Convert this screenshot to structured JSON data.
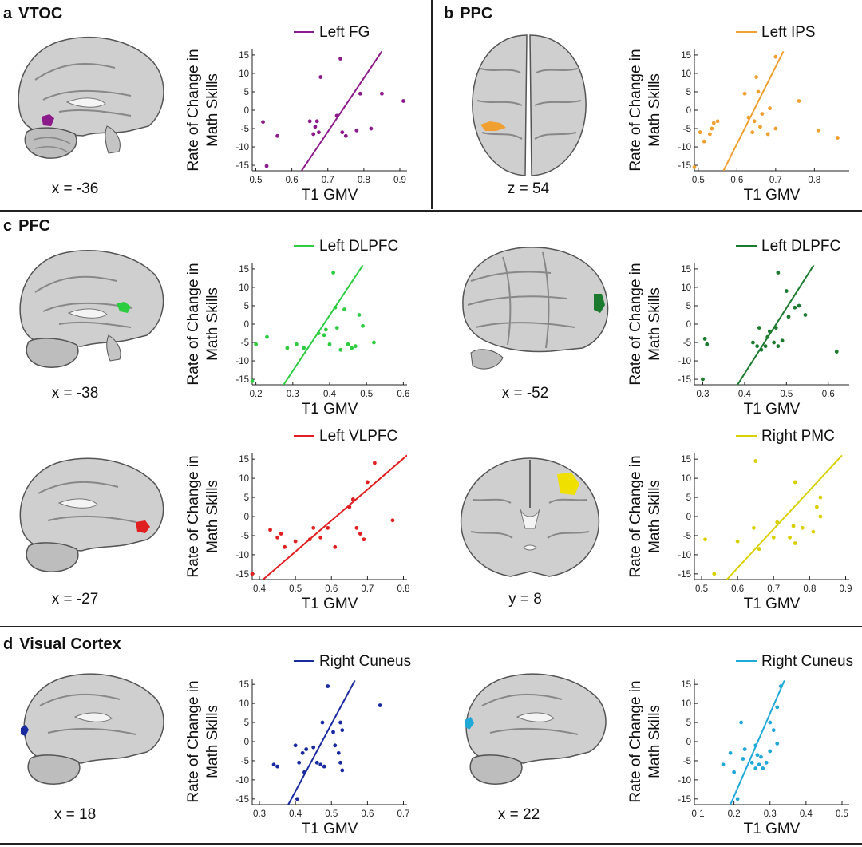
{
  "sections": {
    "a": {
      "letter": "a",
      "title": "VTOC"
    },
    "b": {
      "letter": "b",
      "title": "PPC"
    },
    "c": {
      "letter": "c",
      "title": "PFC"
    },
    "d": {
      "letter": "d",
      "title": "Visual Cortex"
    }
  },
  "panels": [
    {
      "id": "a1",
      "coord_label": "x = -36",
      "roi_color": "#8B1A8B"
    },
    {
      "id": "b1",
      "coord_label": "z = 54",
      "roi_color": "#F0A030"
    },
    {
      "id": "c1",
      "coord_label": "x = -38",
      "roi_color": "#2ECC40"
    },
    {
      "id": "c2",
      "coord_label": "x = -52",
      "roi_color": "#1B7A2E"
    },
    {
      "id": "c3",
      "coord_label": "x = -27",
      "roi_color": "#E02020"
    },
    {
      "id": "c4",
      "coord_label": "y = 8",
      "roi_color": "#F0E000"
    },
    {
      "id": "d1",
      "coord_label": "x = 18",
      "roi_color": "#1A2AA0"
    },
    {
      "id": "d2",
      "coord_label": "x = 22",
      "roi_color": "#20A8D8"
    }
  ],
  "chart_data": [
    {
      "type": "scatter",
      "panel": "a",
      "series_name": "Left FG",
      "color": "#8B1A8B",
      "xlabel": "T1 GMV",
      "ylabel": "Rate of Change in Math Skills",
      "xlim": [
        0.49,
        0.92
      ],
      "ylim": [
        -16.5,
        16.5
      ],
      "xticks": [
        0.5,
        0.6,
        0.7,
        0.8,
        0.9
      ],
      "yticks": [
        -15,
        -10,
        -5,
        0,
        5,
        10,
        15
      ],
      "fit_line": [
        [
          0.627,
          -16.5
        ],
        [
          0.85,
          16
        ]
      ],
      "points": [
        [
          0.52,
          -3.2
        ],
        [
          0.53,
          -15.2
        ],
        [
          0.56,
          -7
        ],
        [
          0.65,
          -3
        ],
        [
          0.66,
          -6.5
        ],
        [
          0.665,
          -4.5
        ],
        [
          0.67,
          -3
        ],
        [
          0.675,
          -6
        ],
        [
          0.68,
          9
        ],
        [
          0.725,
          -1.5
        ],
        [
          0.735,
          14
        ],
        [
          0.74,
          -6
        ],
        [
          0.75,
          -7
        ],
        [
          0.78,
          -5.5
        ],
        [
          0.79,
          4.5
        ],
        [
          0.82,
          -5
        ],
        [
          0.85,
          4.5
        ],
        [
          0.91,
          2.5
        ]
      ]
    },
    {
      "type": "scatter",
      "panel": "b",
      "series_name": "Left IPS",
      "color": "#F0A030",
      "xlabel": "T1 GMV",
      "ylabel": "Rate of Change in Math Skills",
      "xlim": [
        0.49,
        0.89
      ],
      "ylim": [
        -16.5,
        16.5
      ],
      "xticks": [
        0.5,
        0.6,
        0.7,
        0.8
      ],
      "yticks": [
        -15,
        -10,
        -5,
        0,
        5,
        10,
        15
      ],
      "fit_line": [
        [
          0.565,
          -16.5
        ],
        [
          0.72,
          16
        ]
      ],
      "points": [
        [
          0.49,
          -15.5
        ],
        [
          0.505,
          -6
        ],
        [
          0.515,
          -8.5
        ],
        [
          0.53,
          -6.5
        ],
        [
          0.535,
          -5
        ],
        [
          0.54,
          -3.5
        ],
        [
          0.55,
          -3
        ],
        [
          0.62,
          4.5
        ],
        [
          0.63,
          -2
        ],
        [
          0.64,
          -6
        ],
        [
          0.645,
          -3
        ],
        [
          0.65,
          9
        ],
        [
          0.655,
          5
        ],
        [
          0.66,
          -4.5
        ],
        [
          0.665,
          -1
        ],
        [
          0.68,
          -6.5
        ],
        [
          0.685,
          0.5
        ],
        [
          0.7,
          14.5
        ],
        [
          0.7,
          -5
        ],
        [
          0.76,
          2.5
        ],
        [
          0.81,
          -5.5
        ],
        [
          0.86,
          -7.5
        ]
      ]
    },
    {
      "type": "scatter",
      "panel": "c1",
      "series_name": "Left DLPFC",
      "color": "#2ECC40",
      "xlabel": "T1 GMV",
      "ylabel": "Rate of Change in Math Skills",
      "xlim": [
        0.19,
        0.61
      ],
      "ylim": [
        -16.5,
        16.5
      ],
      "xticks": [
        0.2,
        0.3,
        0.4,
        0.5,
        0.6
      ],
      "yticks": [
        -15,
        -10,
        -5,
        0,
        5,
        10,
        15
      ],
      "fit_line": [
        [
          0.275,
          -16.5
        ],
        [
          0.49,
          16
        ]
      ],
      "points": [
        [
          0.19,
          -15.5
        ],
        [
          0.2,
          -5.5
        ],
        [
          0.23,
          -3.5
        ],
        [
          0.285,
          -6.5
        ],
        [
          0.31,
          -5.5
        ],
        [
          0.33,
          -6.5
        ],
        [
          0.37,
          -2.5
        ],
        [
          0.385,
          -3
        ],
        [
          0.39,
          -1.5
        ],
        [
          0.4,
          -5.5
        ],
        [
          0.41,
          14
        ],
        [
          0.415,
          4.5
        ],
        [
          0.42,
          -1
        ],
        [
          0.43,
          -7
        ],
        [
          0.44,
          4
        ],
        [
          0.45,
          -5.5
        ],
        [
          0.46,
          -6.5
        ],
        [
          0.47,
          -6
        ],
        [
          0.48,
          2.5
        ],
        [
          0.49,
          -0.5
        ],
        [
          0.52,
          -5
        ]
      ]
    },
    {
      "type": "scatter",
      "panel": "c2",
      "series_name": "Left DLPFC",
      "color": "#1B7A2E",
      "xlabel": "T1 GMV",
      "ylabel": "Rate of Change in Math Skills",
      "xlim": [
        0.28,
        0.65
      ],
      "ylim": [
        -16.5,
        16.5
      ],
      "xticks": [
        0.3,
        0.4,
        0.5,
        0.6
      ],
      "yticks": [
        -15,
        -10,
        -5,
        0,
        5,
        10,
        15
      ],
      "fit_line": [
        [
          0.383,
          -16.5
        ],
        [
          0.565,
          16
        ]
      ],
      "points": [
        [
          0.3,
          -15
        ],
        [
          0.305,
          -4
        ],
        [
          0.31,
          -5.5
        ],
        [
          0.42,
          -5
        ],
        [
          0.43,
          -6
        ],
        [
          0.435,
          -1
        ],
        [
          0.44,
          -7
        ],
        [
          0.45,
          -6
        ],
        [
          0.455,
          -3.5
        ],
        [
          0.46,
          -2
        ],
        [
          0.47,
          -5
        ],
        [
          0.475,
          -1
        ],
        [
          0.48,
          14
        ],
        [
          0.48,
          -6
        ],
        [
          0.49,
          -4.5
        ],
        [
          0.5,
          9
        ],
        [
          0.505,
          2
        ],
        [
          0.52,
          4.5
        ],
        [
          0.53,
          5
        ],
        [
          0.545,
          2.5
        ],
        [
          0.62,
          -7.5
        ]
      ]
    },
    {
      "type": "scatter",
      "panel": "c3",
      "series_name": "Left VLPFC",
      "color": "#E02020",
      "xlabel": "T1 GMV",
      "ylabel": "Rate of Change in Math Skills",
      "xlim": [
        0.38,
        0.81
      ],
      "ylim": [
        -16.5,
        16.5
      ],
      "xticks": [
        0.4,
        0.5,
        0.6,
        0.7,
        0.8
      ],
      "yticks": [
        -15,
        -10,
        -5,
        0,
        5,
        10,
        15
      ],
      "fit_line": [
        [
          0.41,
          -16.5
        ],
        [
          0.81,
          16
        ]
      ],
      "points": [
        [
          0.38,
          -15
        ],
        [
          0.43,
          -3.5
        ],
        [
          0.45,
          -5.5
        ],
        [
          0.46,
          -4.5
        ],
        [
          0.47,
          -8
        ],
        [
          0.5,
          -6.5
        ],
        [
          0.54,
          -6
        ],
        [
          0.55,
          -3
        ],
        [
          0.57,
          -5.5
        ],
        [
          0.59,
          -3
        ],
        [
          0.61,
          -8
        ],
        [
          0.65,
          2.5
        ],
        [
          0.66,
          4.5
        ],
        [
          0.67,
          -3
        ],
        [
          0.68,
          -4.5
        ],
        [
          0.69,
          -6
        ],
        [
          0.7,
          9
        ],
        [
          0.72,
          14
        ],
        [
          0.77,
          -1
        ]
      ]
    },
    {
      "type": "scatter",
      "panel": "c4",
      "series_name": "Right PMC",
      "color": "#D8D000",
      "xlabel": "T1 GMV",
      "ylabel": "Rate of Change in Math Skills",
      "xlim": [
        0.48,
        0.91
      ],
      "ylim": [
        -16.5,
        16.5
      ],
      "xticks": [
        0.5,
        0.6,
        0.7,
        0.8,
        0.9
      ],
      "yticks": [
        -15,
        -10,
        -5,
        0,
        5,
        10,
        15
      ],
      "fit_line": [
        [
          0.57,
          -16.5
        ],
        [
          0.89,
          16
        ]
      ],
      "points": [
        [
          0.51,
          -6
        ],
        [
          0.535,
          -15
        ],
        [
          0.6,
          -6.5
        ],
        [
          0.645,
          -3
        ],
        [
          0.65,
          14.5
        ],
        [
          0.66,
          -8.5
        ],
        [
          0.7,
          -5.5
        ],
        [
          0.71,
          -1.5
        ],
        [
          0.745,
          -5.5
        ],
        [
          0.755,
          -2.5
        ],
        [
          0.76,
          -7
        ],
        [
          0.76,
          9
        ],
        [
          0.78,
          -3
        ],
        [
          0.81,
          -4
        ],
        [
          0.82,
          2.5
        ],
        [
          0.83,
          5
        ],
        [
          0.83,
          0
        ]
      ]
    },
    {
      "type": "scatter",
      "panel": "d1",
      "series_name": "Right Cuneus",
      "color": "#1A2AA0",
      "xlabel": "T1 GMV",
      "ylabel": "Rate of Change in Math Skills",
      "xlim": [
        0.28,
        0.71
      ],
      "ylim": [
        -16.5,
        16.5
      ],
      "xticks": [
        0.3,
        0.4,
        0.5,
        0.6,
        0.7
      ],
      "yticks": [
        -15,
        -10,
        -5,
        0,
        5,
        10,
        15
      ],
      "fit_line": [
        [
          0.38,
          -16.5
        ],
        [
          0.565,
          16
        ]
      ],
      "points": [
        [
          0.34,
          -6
        ],
        [
          0.35,
          -6.5
        ],
        [
          0.4,
          -1
        ],
        [
          0.405,
          -15
        ],
        [
          0.41,
          -5.5
        ],
        [
          0.42,
          -3
        ],
        [
          0.425,
          -8
        ],
        [
          0.43,
          -2
        ],
        [
          0.45,
          -1.5
        ],
        [
          0.46,
          -5.5
        ],
        [
          0.47,
          -6
        ],
        [
          0.475,
          5
        ],
        [
          0.48,
          -6.5
        ],
        [
          0.49,
          14.5
        ],
        [
          0.505,
          2.5
        ],
        [
          0.51,
          -1
        ],
        [
          0.52,
          -3
        ],
        [
          0.525,
          5
        ],
        [
          0.525,
          -5.5
        ],
        [
          0.53,
          3
        ],
        [
          0.53,
          -7.5
        ],
        [
          0.635,
          9.5
        ]
      ]
    },
    {
      "type": "scatter",
      "panel": "d2",
      "series_name": "Right Cuneus",
      "color": "#20A8D8",
      "xlabel": "T1 GMV",
      "ylabel": "Rate of Change in Math Skills",
      "xlim": [
        0.09,
        0.52
      ],
      "ylim": [
        -16.5,
        16.5
      ],
      "xticks": [
        0.1,
        0.2,
        0.3,
        0.4,
        0.5
      ],
      "yticks": [
        -15,
        -10,
        -5,
        0,
        5,
        10,
        15
      ],
      "fit_line": [
        [
          0.19,
          -16.5
        ],
        [
          0.34,
          16
        ]
      ],
      "points": [
        [
          0.17,
          -6
        ],
        [
          0.19,
          -3
        ],
        [
          0.2,
          -8
        ],
        [
          0.21,
          -15
        ],
        [
          0.22,
          5
        ],
        [
          0.225,
          -4.5
        ],
        [
          0.23,
          -2
        ],
        [
          0.25,
          -5.5
        ],
        [
          0.26,
          -7
        ],
        [
          0.26,
          -1
        ],
        [
          0.265,
          -3.5
        ],
        [
          0.27,
          -6
        ],
        [
          0.275,
          -4
        ],
        [
          0.28,
          -7
        ],
        [
          0.29,
          -5.5
        ],
        [
          0.3,
          -2.5
        ],
        [
          0.3,
          5
        ],
        [
          0.31,
          3
        ],
        [
          0.32,
          -0.5
        ],
        [
          0.32,
          9
        ],
        [
          0.33,
          14.5
        ]
      ]
    }
  ]
}
